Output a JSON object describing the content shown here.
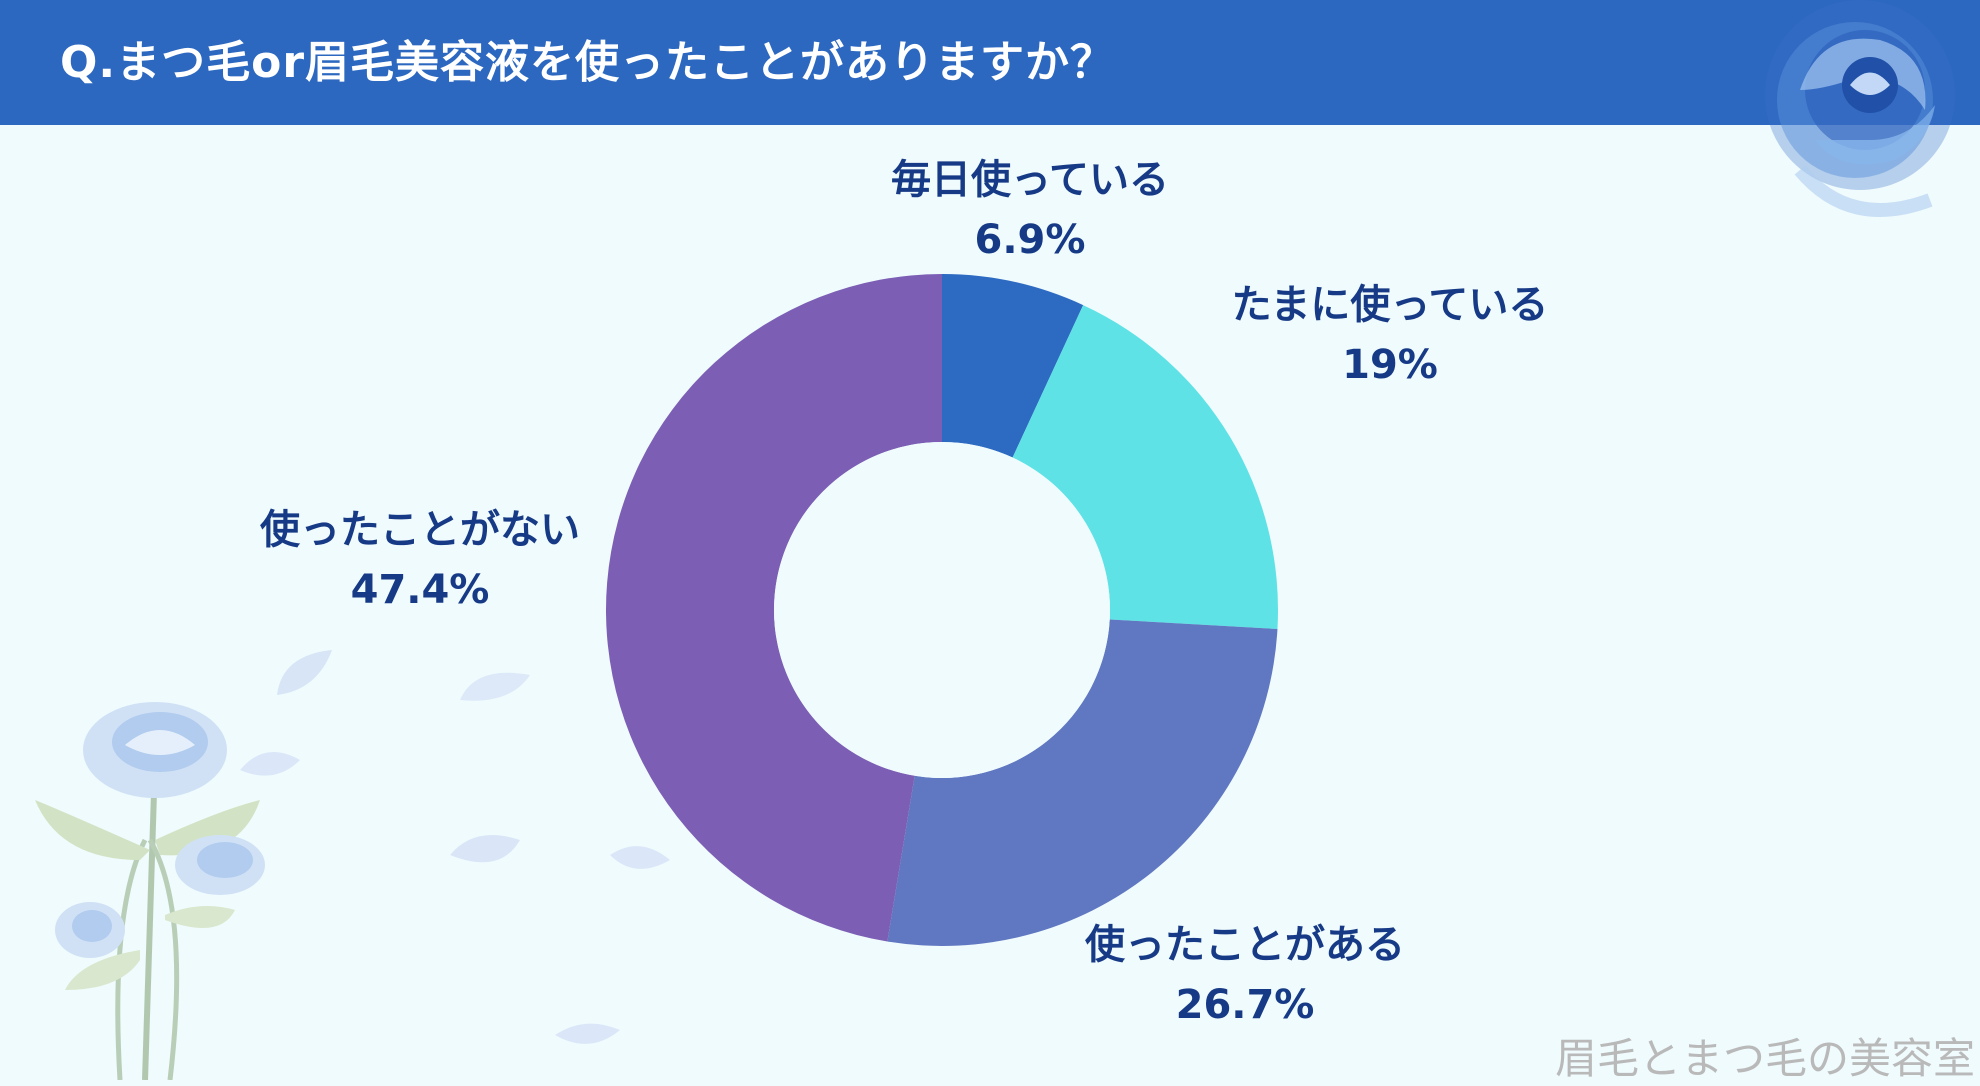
{
  "header": {
    "title": "Q.まつ毛or眉毛美容液を使ったことがありますか？",
    "background": "#2c67c0"
  },
  "background_color": "#effbfd",
  "chart_data": {
    "type": "pie",
    "variant": "donut",
    "title": "Q.まつ毛or眉毛美容液を使ったことがありますか？",
    "categories": [
      "毎日使っている",
      "たまに使っている",
      "使ったことがある",
      "使ったことがない"
    ],
    "values": [
      6.9,
      19,
      26.7,
      47.4
    ],
    "value_labels": [
      "6.9%",
      "19%",
      "26.7%",
      "47.4%"
    ],
    "colors": [
      "#2d6ac2",
      "#5ee2e6",
      "#6077c1",
      "#7c5eb4"
    ],
    "legend": "none (labels placed beside slices)"
  },
  "watermark": "眉毛とまつ毛の美容室",
  "label_color": "#173a86",
  "icons": [
    "blue-rose-icon",
    "blue-rose-bouquet-icon",
    "petal-icon"
  ]
}
